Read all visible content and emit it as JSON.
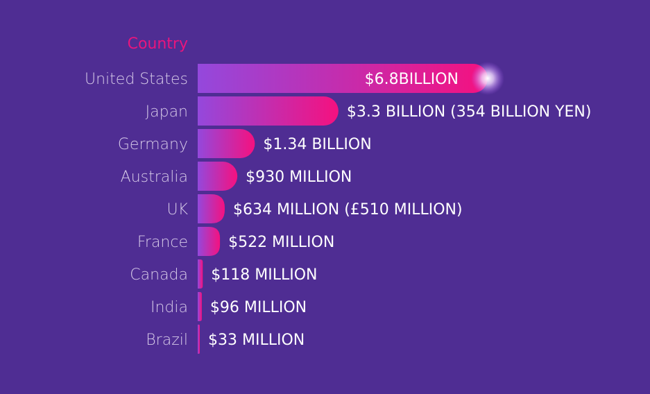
{
  "chart_data": {
    "type": "bar",
    "orientation": "horizontal",
    "category_header": "Country",
    "categories": [
      "United States",
      "Japan",
      "Germany",
      "Australia",
      "UK",
      "France",
      "Canada",
      "India",
      "Brazil"
    ],
    "values": [
      6.8,
      3.3,
      1.34,
      0.93,
      0.634,
      0.522,
      0.118,
      0.096,
      0.033
    ],
    "value_labels": [
      "$6.8BILLION",
      "$3.3 BILLION (354 BILLION YEN)",
      "$1.34 BILLION",
      "$930 MILLION",
      "$634 MILLION (£510 MILLION)",
      "$522 MILLION",
      "$118 MILLION",
      "$96 MILLION",
      "$33 MILLION"
    ],
    "unit": "billion USD",
    "xlim": [
      0,
      6.8
    ],
    "grid": false,
    "legend": "none",
    "title": "",
    "xlabel": "",
    "ylabel": ""
  },
  "colors": {
    "background": "#4f2d93",
    "bar_start": "#9448dc",
    "bar_end": "#f5117f",
    "header_text": "#e9157d",
    "category_text": "#d8cce9",
    "value_text": "#ffffff",
    "glow": "#ffffff"
  }
}
